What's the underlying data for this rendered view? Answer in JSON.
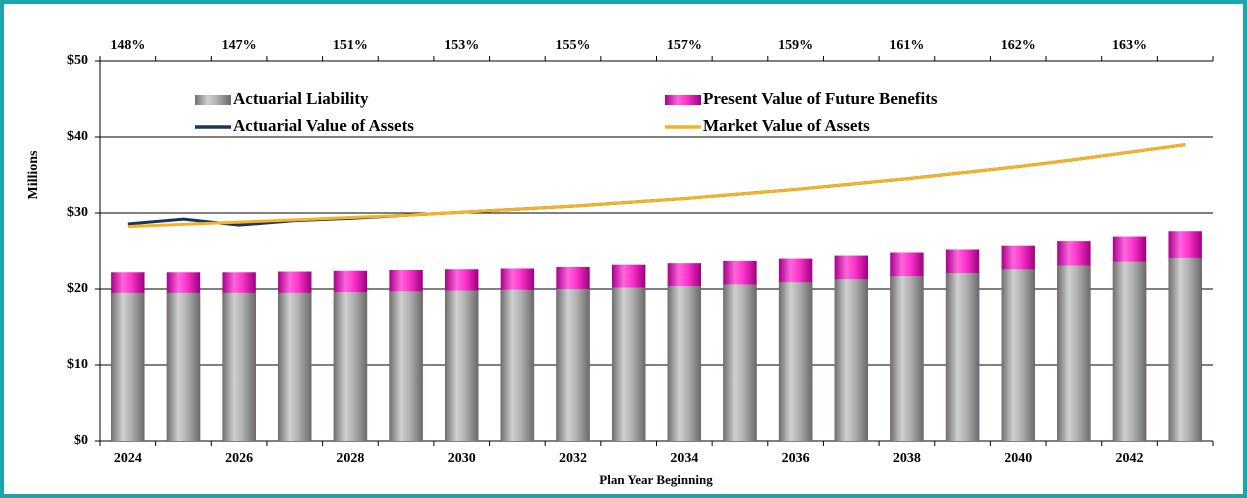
{
  "chart_data": {
    "type": "bar",
    "xlabel": "Plan Year Beginning",
    "ylabel": "Millions",
    "categories": [
      "2024",
      null,
      "2026",
      null,
      "2028",
      null,
      "2030",
      null,
      "2032",
      null,
      "2034",
      null,
      "2036",
      null,
      "2038",
      null,
      "2040",
      null,
      "2042",
      null
    ],
    "top_labels": [
      "148%",
      null,
      "147%",
      null,
      "151%",
      null,
      "153%",
      null,
      "155%",
      null,
      "157%",
      null,
      "159%",
      null,
      "161%",
      null,
      "162%",
      null,
      "163%",
      null
    ],
    "ylim": [
      0,
      50
    ],
    "yticks": [
      {
        "value": 0,
        "label": "$0"
      },
      {
        "value": 10,
        "label": "$10"
      },
      {
        "value": 20,
        "label": "$20"
      },
      {
        "value": 30,
        "label": "$30"
      },
      {
        "value": 40,
        "label": "$40"
      },
      {
        "value": 50,
        "label": "$50"
      }
    ],
    "grid": true,
    "series": [
      {
        "name": "Actuarial Liability",
        "type": "bar",
        "color": "#a6a6a6",
        "values": [
          19.5,
          19.5,
          19.5,
          19.5,
          19.6,
          19.7,
          19.8,
          19.9,
          20.0,
          20.2,
          20.4,
          20.6,
          20.9,
          21.3,
          21.7,
          22.1,
          22.6,
          23.1,
          23.6,
          24.1
        ]
      },
      {
        "name": "Present Value of Future Benefits",
        "type": "bar",
        "color": "#ff33cc",
        "values": [
          22.2,
          22.2,
          22.2,
          22.3,
          22.4,
          22.5,
          22.6,
          22.7,
          22.9,
          23.2,
          23.4,
          23.7,
          24.0,
          24.4,
          24.8,
          25.2,
          25.7,
          26.3,
          26.9,
          27.6
        ]
      },
      {
        "name": "Actuarial Value of Assets",
        "type": "line",
        "color": "#17375e",
        "values": [
          28.55,
          29.2,
          28.4,
          29.0,
          29.3,
          29.7,
          30.1,
          30.5,
          30.9,
          31.4,
          31.9,
          32.5,
          33.1,
          33.8,
          34.5,
          35.3,
          36.1,
          37.0,
          38.0,
          39.0
        ]
      },
      {
        "name": "Market Value of Assets",
        "type": "line",
        "color": "#f5b324",
        "values": [
          28.2,
          28.5,
          28.8,
          29.1,
          29.4,
          29.7,
          30.1,
          30.5,
          30.9,
          31.4,
          31.9,
          32.5,
          33.1,
          33.8,
          34.5,
          35.3,
          36.1,
          37.0,
          38.0,
          39.0
        ]
      }
    ]
  }
}
